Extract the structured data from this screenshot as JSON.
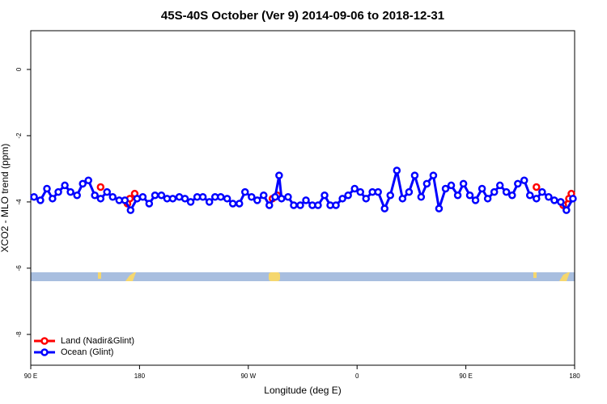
{
  "chart_data": {
    "type": "line",
    "title": "45S-40S October (Ver 9)   2014-09-06 to 2018-12-31",
    "x_label": "Longitude (deg E)",
    "y_label": "XCO2 - MLO trend (ppm)",
    "xlim": [
      90,
      540
    ],
    "xticks": [
      {
        "value": 90,
        "label": "90 E"
      },
      {
        "value": 180,
        "label": "180"
      },
      {
        "value": 270,
        "label": "90 W"
      },
      {
        "value": 360,
        "label": "0"
      },
      {
        "value": 450,
        "label": "90 E"
      },
      {
        "value": 540,
        "label": "180"
      }
    ],
    "ylim": [
      -8.93,
      1.17
    ],
    "yticks": [
      0,
      -2,
      -4,
      -6,
      -8
    ],
    "legend": "bottom-left",
    "series": [
      {
        "name": "Land (Nadir&Glint)",
        "color": "#ff0000",
        "x": [
          147.8,
          null,
          170,
          172,
          176,
          null,
          290,
          294,
          null,
          508.4,
          null,
          530.6,
          535.3,
          537.3
        ],
        "values": [
          -3.55,
          null,
          -4.05,
          -3.9,
          -3.75,
          null,
          -3.9,
          -3.8,
          null,
          -3.55,
          null,
          -4.1,
          -3.9,
          -3.75
        ]
      },
      {
        "name": "Ocean (Glint)",
        "color": "#0000ff",
        "x": [
          92.7,
          98,
          103.4,
          108,
          112.8,
          118.2,
          122.9,
          128.3,
          133,
          137.7,
          143,
          147.8,
          153.1,
          157.8,
          163.2,
          167.9,
          172.6,
          178,
          182.7,
          188,
          192.8,
          198.1,
          202.8,
          207.5,
          212.9,
          217.6,
          222.3,
          227.7,
          232.4,
          237.8,
          242.5,
          247.2,
          252.5,
          257.2,
          262.6,
          267.3,
          272.7,
          277.4,
          282.7,
          287.4,
          292.2,
          295.5,
          297.5,
          302.9,
          307.6,
          313,
          317.7,
          323,
          327.7,
          333.1,
          337.8,
          342.5,
          347.9,
          352.6,
          358,
          362.7,
          367.4,
          372.7,
          377.4,
          382.8,
          387.5,
          392.9,
          397.6,
          403,
          407.7,
          413,
          417.7,
          423.1,
          427.8,
          433.2,
          437.9,
          443.3,
          448,
          453.3,
          458,
          463.4,
          468.1,
          473.5,
          478.2,
          483.5,
          488.3,
          493,
          498.3,
          503,
          508.4,
          513.1,
          518.5,
          523.2,
          528.5,
          533.2,
          538.6
        ],
        "values": [
          -3.85,
          -3.95,
          -3.6,
          -3.9,
          -3.7,
          -3.5,
          -3.7,
          -3.8,
          -3.45,
          -3.35,
          -3.8,
          -3.9,
          -3.7,
          -3.85,
          -3.95,
          -3.95,
          -4.25,
          -3.9,
          -3.85,
          -4.05,
          -3.8,
          -3.8,
          -3.9,
          -3.9,
          -3.85,
          -3.9,
          -4,
          -3.85,
          -3.85,
          -4,
          -3.85,
          -3.85,
          -3.9,
          -4.05,
          -4.05,
          -3.7,
          -3.85,
          -3.95,
          -3.8,
          -4.1,
          -3.85,
          -3.2,
          -3.9,
          -3.85,
          -4.1,
          -4.1,
          -3.95,
          -4.1,
          -4.1,
          -3.8,
          -4.1,
          -4.1,
          -3.9,
          -3.8,
          -3.6,
          -3.7,
          -3.9,
          -3.7,
          -3.7,
          -4.2,
          -3.8,
          -3.05,
          -3.9,
          -3.7,
          -3.2,
          -3.85,
          -3.45,
          -3.2,
          -4.2,
          -3.6,
          -3.5,
          -3.8,
          -3.45,
          -3.8,
          -3.95,
          -3.6,
          -3.9,
          -3.7,
          -3.5,
          -3.7,
          -3.8,
          -3.45,
          -3.35,
          -3.8,
          -3.9,
          -3.7,
          -3.85,
          -3.95,
          -4,
          -4.25,
          -3.9
        ]
      }
    ]
  }
}
